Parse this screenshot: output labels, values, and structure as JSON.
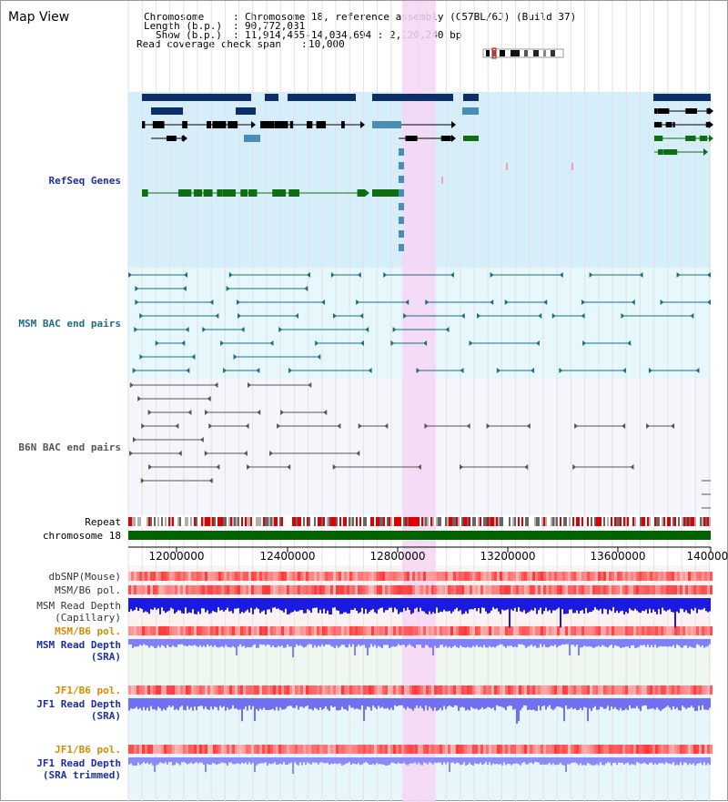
{
  "view_title": "Map View",
  "info": {
    "chromosome_key": "Chromosome",
    "chromosome_val": "Chromosome 18, reference assembly (C57BL/6J) (Build 37)",
    "length_key": "Length (b.p.)",
    "length_val": "90,772,031",
    "show_key": "Show (b.p.)",
    "show_val": "11,914,455-14,034,694 : 2,120,240 bp",
    "coverage_key": "Read coverage check span",
    "coverage_val": "10,000"
  },
  "tracks": {
    "refseq": "RefSeq Genes",
    "msm_bac": "MSM BAC end pairs",
    "b6n_bac": "B6N BAC end pairs",
    "repeat": "Repeat",
    "chromosome": "chromosome 18",
    "dbsnp": "dbSNP(Mouse)",
    "msm_b6_pol_1": "MSM/B6 pol.",
    "msm_depth_cap_1": "MSM Read Depth",
    "msm_depth_cap_2": "(Capillary)",
    "msm_b6_pol_2": "MSM/B6 pol.",
    "msm_depth_sra_1": "MSM Read Depth",
    "msm_depth_sra_2": "(SRA)",
    "jf1_b6_pol_1": "JF1/B6 pol.",
    "jf1_depth_sra_1": "JF1 Read Depth",
    "jf1_depth_sra_2": "(SRA)",
    "jf1_b6_pol_2": "JF1/B6 pol.",
    "jf1_depth_trim_1": "JF1 Read Depth",
    "jf1_depth_trim_2": "(SRA trimmed)"
  },
  "axis": {
    "ticks": [
      "12000000",
      "12400000",
      "12800000",
      "13200000",
      "13600000",
      "14000000"
    ]
  },
  "colors": {
    "refseq_bg": "#d6eefa",
    "msm_bg": "#e6f8fb",
    "b6n_bg": "#f4f6fb",
    "highlight": "#f6d6f4",
    "gene_dark": "#0b2f66",
    "gene_mid": "#4a8db5",
    "gene_green": "#0f6e12",
    "msm_label": "#1a6e86",
    "b6n_label": "#555555",
    "refseq_label": "#1b2fa0",
    "pol_orange": "#d88a00",
    "depth_blue": "#0000cc",
    "chrom_green": "#006400"
  }
}
